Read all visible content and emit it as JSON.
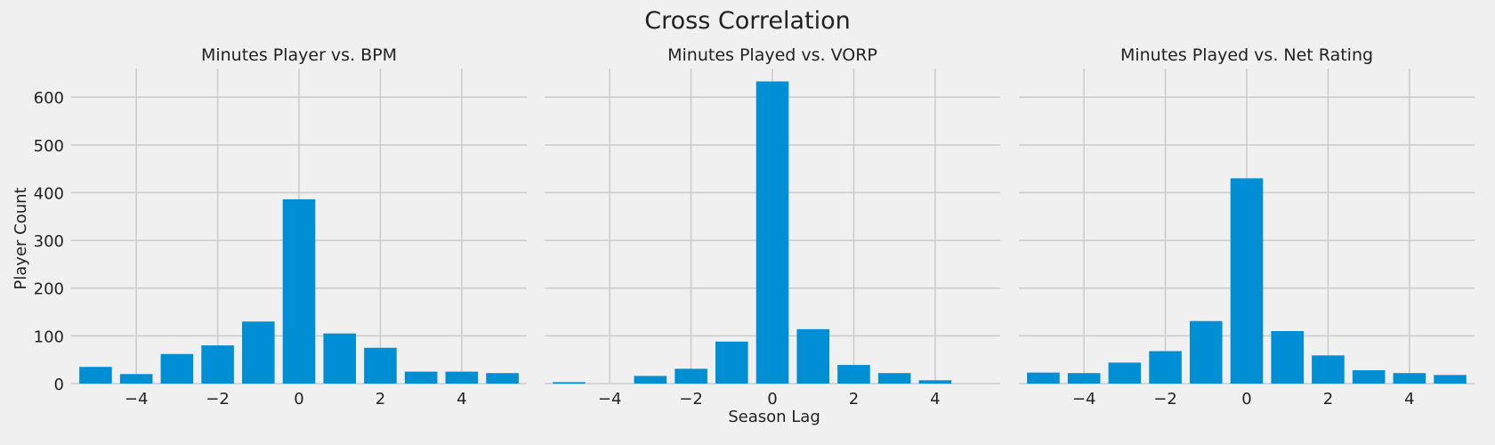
{
  "figure": {
    "title": "Cross Correlation",
    "xlabel": "Season Lag",
    "ylabel": "Player Count",
    "background": "#f0f0f0",
    "grid_color": "#cbcbcb",
    "bar_color": "#008fd5"
  },
  "chart_data": [
    {
      "type": "bar",
      "title": "Minutes Player vs. BPM",
      "x": [
        -5,
        -4,
        -3,
        -2,
        -1,
        0,
        1,
        2,
        3,
        4,
        5
      ],
      "values": [
        35,
        20,
        62,
        80,
        130,
        386,
        105,
        75,
        25,
        25,
        22
      ],
      "xlim": [
        -5.6,
        5.6
      ],
      "ylim": [
        0,
        660
      ],
      "xticks": [
        -4,
        -2,
        0,
        2,
        4
      ],
      "yticks": [
        0,
        100,
        200,
        300,
        400,
        500,
        600
      ],
      "grid": true
    },
    {
      "type": "bar",
      "title": "Minutes Played vs. VORP",
      "x": [
        -5,
        -4,
        -3,
        -2,
        -1,
        0,
        1,
        2,
        3,
        4,
        5
      ],
      "values": [
        3,
        0,
        16,
        31,
        88,
        633,
        114,
        39,
        22,
        7,
        0
      ],
      "xlim": [
        -5.6,
        5.6
      ],
      "ylim": [
        0,
        660
      ],
      "xticks": [
        -4,
        -2,
        0,
        2,
        4
      ],
      "yticks": [
        0,
        100,
        200,
        300,
        400,
        500,
        600
      ],
      "grid": true
    },
    {
      "type": "bar",
      "title": "Minutes Played vs. Net Rating",
      "x": [
        -5,
        -4,
        -3,
        -2,
        -1,
        0,
        1,
        2,
        3,
        4,
        5
      ],
      "values": [
        23,
        22,
        44,
        68,
        131,
        430,
        110,
        59,
        28,
        22,
        18
      ],
      "xlim": [
        -5.6,
        5.6
      ],
      "ylim": [
        0,
        660
      ],
      "xticks": [
        -4,
        -2,
        0,
        2,
        4
      ],
      "yticks": [
        0,
        100,
        200,
        300,
        400,
        500,
        600
      ],
      "grid": true
    }
  ]
}
